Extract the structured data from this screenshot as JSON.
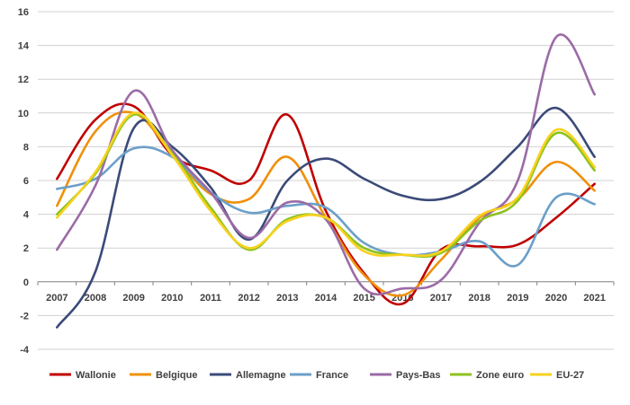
{
  "chart_data": {
    "type": "line",
    "title": "",
    "xlabel": "",
    "ylabel": "",
    "ylim": [
      -4,
      16
    ],
    "yticks": [
      -4,
      -2,
      0,
      2,
      4,
      6,
      8,
      10,
      12,
      14,
      16
    ],
    "grid": "horizontal",
    "legend_position": "bottom",
    "categories": [
      "2007",
      "2008",
      "2009",
      "2010",
      "2011",
      "2012",
      "2013",
      "2014",
      "2015",
      "2016",
      "2017",
      "2018",
      "2019",
      "2020",
      "2021"
    ],
    "series": [
      {
        "name": "Wallonie",
        "color": "#c00000",
        "values": [
          6.1,
          9.6,
          10.4,
          7.5,
          6.6,
          6.0,
          9.9,
          4.2,
          0.5,
          -1.3,
          1.9,
          2.1,
          2.2,
          3.8,
          5.8
        ]
      },
      {
        "name": "Belgique",
        "color": "#f0900a",
        "values": [
          4.5,
          8.9,
          10.0,
          7.6,
          5.2,
          4.9,
          7.4,
          3.8,
          0.4,
          -0.8,
          1.3,
          3.8,
          4.9,
          7.1,
          5.4
        ]
      },
      {
        "name": "Allemagne",
        "color": "#3b4a78",
        "values": [
          -2.7,
          0.6,
          9.1,
          8.0,
          5.6,
          2.5,
          6.0,
          7.3,
          6.1,
          5.1,
          4.9,
          5.9,
          8.0,
          10.3,
          7.4
        ]
      },
      {
        "name": "France",
        "color": "#6b9fc9",
        "values": [
          5.5,
          6.1,
          7.9,
          7.4,
          5.3,
          4.1,
          4.5,
          4.4,
          2.3,
          1.6,
          1.8,
          2.4,
          1.0,
          5.0,
          4.6
        ]
      },
      {
        "name": "Pays-Bas",
        "color": "#9b6ba6",
        "values": [
          1.9,
          5.7,
          11.3,
          7.8,
          5.3,
          2.6,
          4.7,
          3.7,
          -0.4,
          -0.4,
          0.1,
          3.5,
          6.0,
          14.5,
          11.1
        ]
      },
      {
        "name": "Zone euro",
        "color": "#8dc21f",
        "values": [
          4.0,
          6.4,
          9.9,
          7.6,
          4.4,
          1.9,
          3.7,
          3.8,
          2.0,
          1.6,
          1.7,
          3.6,
          4.8,
          8.8,
          6.6
        ]
      },
      {
        "name": "EU-27",
        "color": "#f7d21e",
        "values": [
          3.8,
          6.5,
          10.0,
          7.5,
          4.2,
          2.0,
          3.6,
          3.8,
          1.8,
          1.6,
          1.8,
          3.9,
          5.0,
          9.0,
          6.8
        ]
      }
    ]
  }
}
